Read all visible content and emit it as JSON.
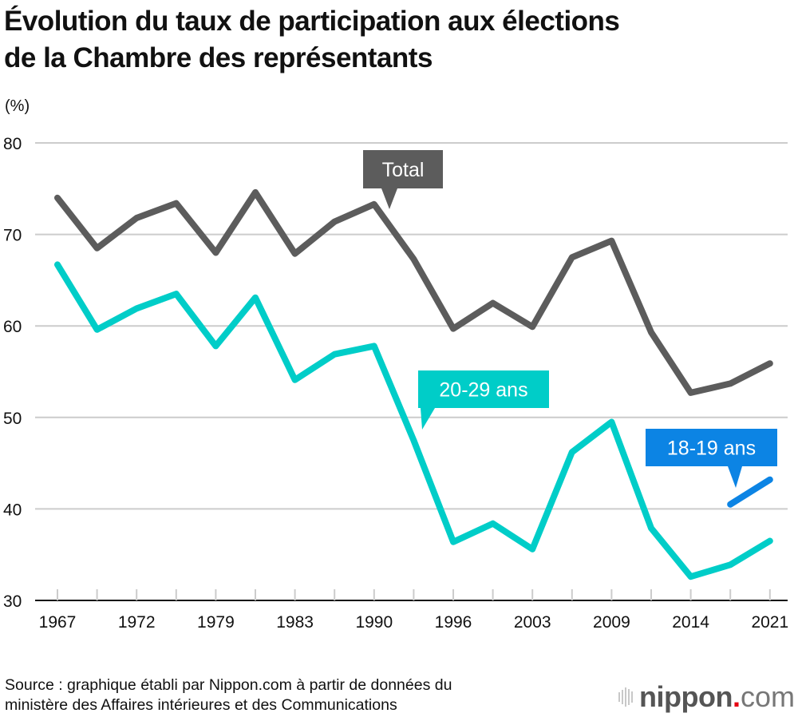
{
  "title_lines": [
    "Évolution du taux de participation aux élections",
    "de la Chambre des représentants"
  ],
  "source_lines": [
    "Source : graphique établi par Nippon.com à partir de données du",
    "ministère des Affaires intérieures et des Communications"
  ],
  "logo": {
    "name": "nippon",
    "dot": ".",
    "suffix": "com",
    "icon": "sound-bars-icon"
  },
  "chart_data": {
    "type": "line",
    "title": "Évolution du taux de participation aux élections de la Chambre des représentants",
    "xlabel": "",
    "ylabel": "(%)",
    "ylim": [
      30,
      80
    ],
    "yticks": [
      30,
      40,
      50,
      60,
      70,
      80
    ],
    "grid": true,
    "x": [
      1967,
      1969,
      1972,
      1976,
      1979,
      1980,
      1983,
      1986,
      1990,
      1993,
      1996,
      2000,
      2003,
      2005,
      2009,
      2012,
      2014,
      2017,
      2021
    ],
    "xtick_labels": [
      "1967",
      "",
      "1972",
      "",
      "1979",
      "",
      "1983",
      "",
      "1990",
      "",
      "1996",
      "",
      "2003",
      "",
      "2009",
      "",
      "2014",
      "",
      "2021"
    ],
    "series": [
      {
        "name": "Total",
        "color": "#5c5c5c",
        "values": [
          74.0,
          68.5,
          71.8,
          73.4,
          68.0,
          74.6,
          67.9,
          71.4,
          73.3,
          67.3,
          59.7,
          62.5,
          59.9,
          67.5,
          69.3,
          59.3,
          52.7,
          53.7,
          55.9
        ]
      },
      {
        "name": "20-29 ans",
        "color": "#00cdc8",
        "values": [
          66.7,
          59.6,
          61.9,
          63.5,
          57.8,
          63.1,
          54.1,
          56.9,
          57.8,
          47.5,
          36.4,
          38.4,
          35.6,
          46.2,
          49.5,
          37.9,
          32.6,
          33.9,
          36.5
        ]
      },
      {
        "name": "18-19 ans",
        "color": "#0c84e4",
        "values": [
          null,
          null,
          null,
          null,
          null,
          null,
          null,
          null,
          null,
          null,
          null,
          null,
          null,
          null,
          null,
          null,
          null,
          40.5,
          43.2
        ]
      }
    ],
    "annotations": [
      {
        "series": "Total",
        "text": "Total",
        "color": "#5c5c5c"
      },
      {
        "series": "20-29 ans",
        "text": "20-29 ans",
        "color": "#00cdc8"
      },
      {
        "series": "18-19 ans",
        "text": "18-19 ans",
        "color": "#0c84e4"
      }
    ]
  }
}
